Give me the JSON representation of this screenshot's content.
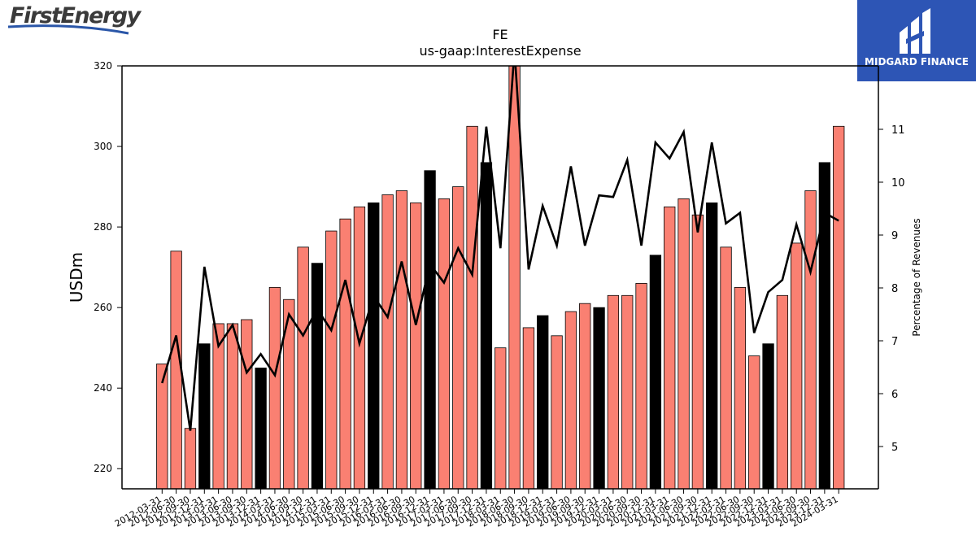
{
  "header": {
    "left_logo": "FirstEnergy",
    "right_logo": "MIDGARD FINANCE"
  },
  "chart_data": {
    "type": "bar",
    "title": "FE",
    "subtitle": "us-gaap:InterestExpense",
    "ylabel": "USDm",
    "y2label": "Percentage of Revenues",
    "ylim": [
      215,
      320
    ],
    "y2lim": [
      4.2,
      12.2
    ],
    "yticks": [
      220,
      240,
      260,
      280,
      300,
      320
    ],
    "y2ticks": [
      5,
      6,
      7,
      8,
      9,
      10,
      11
    ],
    "categories": [
      "2012-03-31",
      "2012-06-30",
      "2012-09-30",
      "2012-12-31",
      "2013-03-31",
      "2013-06-30",
      "2013-09-30",
      "2013-12-31",
      "2014-03-31",
      "2014-06-30",
      "2014-09-30",
      "2014-12-31",
      "2015-03-31",
      "2015-06-30",
      "2015-09-30",
      "2015-12-31",
      "2016-03-31",
      "2016-06-30",
      "2016-09-30",
      "2016-12-31",
      "2017-03-31",
      "2017-06-30",
      "2017-09-30",
      "2017-12-31",
      "2018-03-31",
      "2018-06-30",
      "2018-09-30",
      "2018-12-31",
      "2019-03-31",
      "2019-06-30",
      "2019-09-30",
      "2019-12-31",
      "2020-03-31",
      "2020-06-30",
      "2020-09-30",
      "2020-12-31",
      "2021-03-31",
      "2021-06-30",
      "2021-09-30",
      "2021-12-31",
      "2022-03-31",
      "2022-06-30",
      "2022-09-30",
      "2022-12-31",
      "2023-03-31",
      "2023-06-30",
      "2023-09-30",
      "2023-12-31",
      "2024-03-31"
    ],
    "series": [
      {
        "values": [
          246,
          274,
          230,
          251,
          256,
          256,
          257,
          245,
          265,
          262,
          275,
          271,
          279,
          282,
          285,
          286,
          288,
          289,
          286,
          294,
          287,
          290,
          305,
          296,
          250,
          325,
          255,
          258,
          253,
          259,
          261,
          260,
          263,
          263,
          266,
          273,
          285,
          287,
          283,
          286,
          275,
          265,
          248,
          251,
          263,
          276,
          289,
          296,
          305
        ],
        "highlight": [
          false,
          false,
          false,
          true,
          false,
          false,
          false,
          true,
          false,
          false,
          false,
          true,
          false,
          false,
          false,
          true,
          false,
          false,
          false,
          true,
          false,
          false,
          false,
          true,
          false,
          false,
          false,
          true,
          false,
          false,
          false,
          true,
          false,
          false,
          false,
          true,
          false,
          false,
          false,
          true,
          false,
          false,
          false,
          true,
          false,
          false,
          false,
          true,
          false
        ],
        "colors": {
          "fill": "#fa8072",
          "highlight": "#000000",
          "edge": "#000000"
        }
      },
      {
        "axis": "right",
        "values": [
          6.2,
          7.1,
          5.3,
          8.4,
          6.9,
          7.3,
          6.4,
          6.75,
          6.35,
          7.5,
          7.1,
          7.6,
          7.2,
          8.15,
          6.95,
          7.85,
          7.45,
          8.5,
          7.3,
          8.45,
          8.1,
          8.75,
          8.25,
          11.05,
          8.75,
          12.5,
          8.35,
          9.55,
          8.8,
          10.3,
          8.8,
          9.75,
          9.72,
          10.42,
          8.8,
          10.75,
          10.45,
          10.95,
          9.05,
          10.75,
          9.22,
          9.42,
          7.15,
          7.92,
          8.15,
          9.2,
          8.3,
          9.42,
          9.27
        ],
        "colors": {
          "line": "#000000"
        }
      }
    ],
    "grid": false
  }
}
